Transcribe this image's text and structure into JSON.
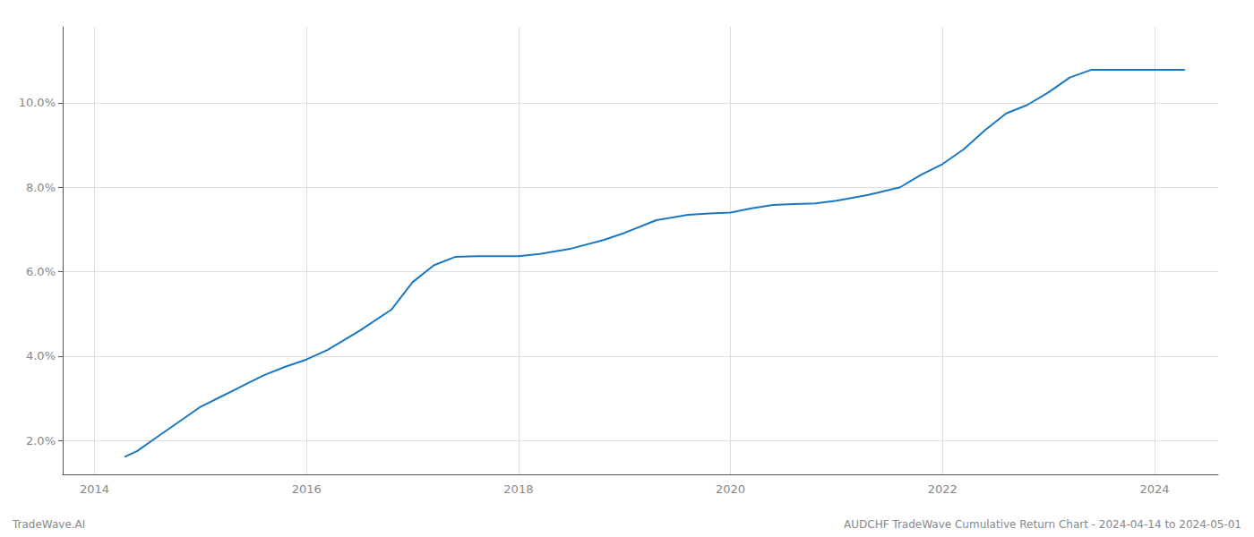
{
  "chart_data": {
    "type": "line",
    "x": [
      2014.29,
      2014.4,
      2014.6,
      2014.8,
      2015.0,
      2015.2,
      2015.4,
      2015.6,
      2015.8,
      2016.0,
      2016.2,
      2016.5,
      2016.8,
      2017.0,
      2017.2,
      2017.4,
      2017.6,
      2017.8,
      2018.0,
      2018.2,
      2018.5,
      2018.8,
      2019.0,
      2019.3,
      2019.6,
      2019.8,
      2020.0,
      2020.2,
      2020.4,
      2020.6,
      2020.8,
      2021.0,
      2021.3,
      2021.6,
      2021.8,
      2022.0,
      2022.2,
      2022.4,
      2022.6,
      2022.8,
      2023.0,
      2023.2,
      2023.4,
      2023.6,
      2023.8,
      2024.0,
      2024.28
    ],
    "values": [
      1.62,
      1.75,
      2.1,
      2.45,
      2.8,
      3.05,
      3.3,
      3.55,
      3.75,
      3.92,
      4.15,
      4.6,
      5.1,
      5.75,
      6.15,
      6.35,
      6.37,
      6.37,
      6.37,
      6.42,
      6.55,
      6.75,
      6.92,
      7.22,
      7.35,
      7.38,
      7.4,
      7.5,
      7.58,
      7.6,
      7.62,
      7.68,
      7.82,
      8.0,
      8.3,
      8.55,
      8.9,
      9.35,
      9.75,
      9.95,
      10.25,
      10.6,
      10.78,
      10.78,
      10.78,
      10.78,
      10.78
    ],
    "color": "#1a78c2",
    "xlim": [
      2013.7,
      2024.6
    ],
    "xticks": [
      2014,
      2016,
      2018,
      2020,
      2022,
      2024
    ],
    "ylim": [
      1.2,
      11.8
    ],
    "yticks": [
      {
        "value": 2.0,
        "label": "2.0%"
      },
      {
        "value": 4.0,
        "label": "4.0%"
      },
      {
        "value": 6.0,
        "label": "6.0%"
      },
      {
        "value": 8.0,
        "label": "8.0%"
      },
      {
        "value": 10.0,
        "label": "10.0%"
      }
    ],
    "grid": true,
    "annotations": [
      "TradeWave.AI",
      "AUDCHF TradeWave Cumulative Return Chart - 2024-04-14 to 2024-05-01"
    ]
  }
}
